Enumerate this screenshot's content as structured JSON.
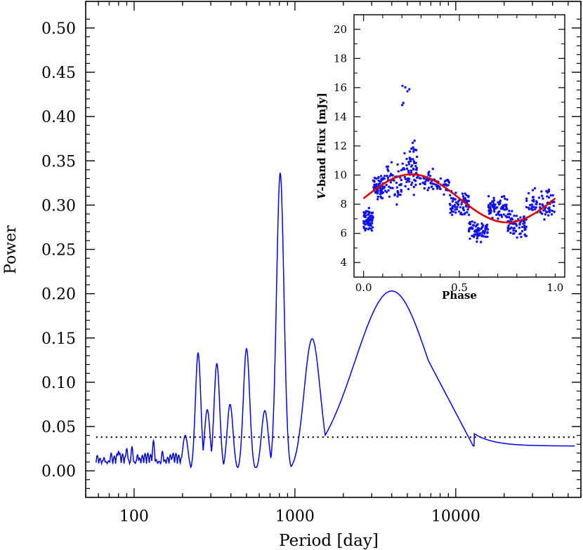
{
  "colors": {
    "curve": "#0000ee",
    "fit": "#dd0000",
    "points": "#1010ee",
    "axis": "#000000"
  },
  "chart_data": [
    {
      "type": "line",
      "xscale": "log",
      "xlabel": "Period [day]",
      "ylabel": "Power",
      "xlim": [
        50,
        60000
      ],
      "ylim": [
        -0.03,
        0.53
      ],
      "x_ticklabels": [
        "100",
        "1000",
        "10000"
      ],
      "x_ticks": [
        100,
        1000,
        10000
      ],
      "y_ticks": [
        0.0,
        0.05,
        0.1,
        0.15,
        0.2,
        0.25,
        0.3,
        0.35,
        0.4,
        0.45,
        0.5
      ],
      "y_ticklabels": [
        "0.00",
        "0.05",
        "0.10",
        "0.15",
        "0.20",
        "0.25",
        "0.30",
        "0.35",
        "0.40",
        "0.45",
        "0.50"
      ],
      "threshold": 0.038,
      "peaks": [
        {
          "x": 60,
          "y": 0.005
        },
        {
          "x": 65,
          "y": 0.015
        },
        {
          "x": 72,
          "y": 0.02
        },
        {
          "x": 80,
          "y": 0.022
        },
        {
          "x": 90,
          "y": 0.025
        },
        {
          "x": 97,
          "y": 0.027
        },
        {
          "x": 105,
          "y": 0.018
        },
        {
          "x": 132,
          "y": 0.034
        },
        {
          "x": 150,
          "y": 0.022
        },
        {
          "x": 172,
          "y": 0.014
        },
        {
          "x": 208,
          "y": 0.04
        },
        {
          "x": 250,
          "y": 0.133
        },
        {
          "x": 285,
          "y": 0.069
        },
        {
          "x": 327,
          "y": 0.121
        },
        {
          "x": 395,
          "y": 0.075
        },
        {
          "x": 500,
          "y": 0.138
        },
        {
          "x": 650,
          "y": 0.068
        },
        {
          "x": 810,
          "y": 0.336
        },
        {
          "x": 1280,
          "y": 0.149
        },
        {
          "x": 4000,
          "y": 0.203
        }
      ],
      "valleys": [
        {
          "x": 1740,
          "y": 0.007
        },
        {
          "x": 10000,
          "y": 0.058
        },
        {
          "x": 14000,
          "y": 0.042
        },
        {
          "x": 18000,
          "y": 0.035
        },
        {
          "x": 30000,
          "y": 0.03
        },
        {
          "x": 55000,
          "y": 0.028
        }
      ]
    },
    {
      "type": "scatter",
      "xlabel": "Phase",
      "ylabel_prefix": "V",
      "ylabel": "-band Flux [mJy]",
      "xlim": [
        -0.05,
        1.05
      ],
      "ylim": [
        3,
        21
      ],
      "x_ticks": [
        0.0,
        0.5,
        1.0
      ],
      "x_ticklabels": [
        "0.0",
        "0.5",
        "1.0"
      ],
      "y_ticks": [
        4,
        6,
        8,
        10,
        12,
        14,
        16,
        18,
        20
      ],
      "y_ticklabels": [
        "4",
        "6",
        "8",
        "10",
        "12",
        "14",
        "16",
        "18",
        "20"
      ],
      "fit": {
        "mean": 8.4,
        "amplitude": 1.65,
        "phase_of_max": 0.25
      },
      "n_points": 700
    }
  ]
}
